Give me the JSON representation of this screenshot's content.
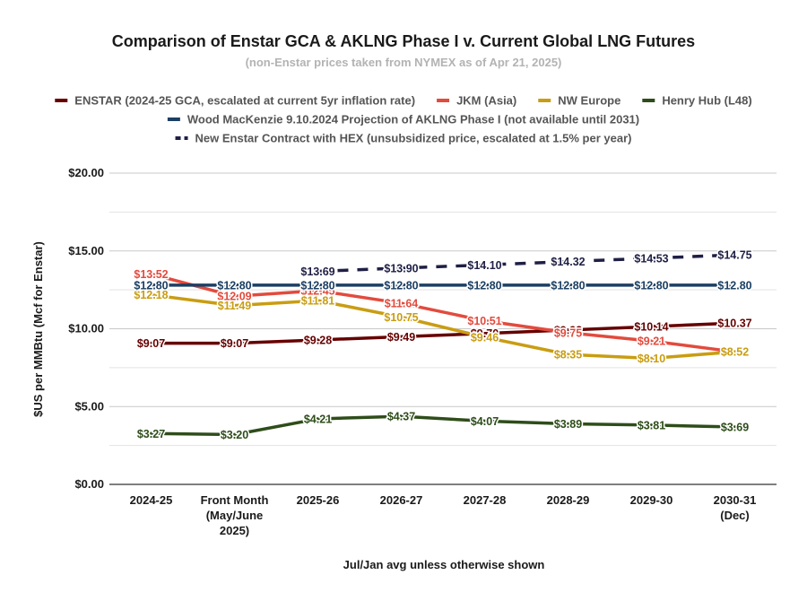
{
  "chart_data": {
    "type": "line",
    "title": "Comparison of Enstar GCA & AKLNG Phase I v. Current Global LNG Futures",
    "subtitle": "(non-Enstar prices taken from NYMEX as of Apr 21, 2025)",
    "xlabel": "Jul/Jan avg unless otherwise shown",
    "ylabel": "$US per MMBtu (Mcf for Enstar)",
    "ylim": [
      0,
      20
    ],
    "yticks": [
      "$0.00",
      "$5.00",
      "$10.00",
      "$15.00",
      "$20.00"
    ],
    "ytick_values": [
      0,
      5,
      10,
      15,
      20
    ],
    "categories": [
      [
        "2024-25"
      ],
      [
        "Front Month",
        "(May/June",
        "2025)"
      ],
      [
        "2025-26"
      ],
      [
        "2026-27"
      ],
      [
        "2027-28"
      ],
      [
        "2028-29"
      ],
      [
        "2029-30"
      ],
      [
        "2030-31",
        "(Dec)"
      ]
    ],
    "grid": true,
    "legend_position": "top",
    "series": [
      {
        "name": "ENSTAR (2024-25 GCA, escalated at current 5yr inflation rate)",
        "color": "#660000",
        "dash": false,
        "values": [
          9.07,
          9.07,
          9.28,
          9.49,
          9.7,
          9.92,
          10.14,
          10.37
        ],
        "labels": [
          "$9.07",
          "$9.07",
          "$9.28",
          "$9.49",
          "$9.70",
          "$9.92",
          "$10.14",
          "$10.37"
        ]
      },
      {
        "name": "JKM (Asia)",
        "color": "#e24b3d",
        "dash": false,
        "values": [
          13.52,
          12.09,
          12.45,
          11.64,
          10.51,
          9.75,
          9.21,
          8.52
        ],
        "labels": [
          "$13.52",
          "$12.09",
          "$12.45",
          "$11.64",
          "$10.51",
          "$9.75",
          "$9.21",
          "$8.52"
        ]
      },
      {
        "name": "NW Europe",
        "color": "#c99d12",
        "dash": false,
        "values": [
          12.18,
          11.49,
          11.81,
          10.75,
          9.46,
          8.35,
          8.1,
          8.52
        ],
        "labels": [
          "$12.18",
          "$11.49",
          "$11.81",
          "$10.75",
          "$9.46",
          "$8.35",
          "$8.10",
          "$8.52"
        ]
      },
      {
        "name": "Henry Hub (L48)",
        "color": "#2e4d1a",
        "dash": false,
        "values": [
          3.27,
          3.2,
          4.21,
          4.37,
          4.07,
          3.89,
          3.81,
          3.69
        ],
        "labels": [
          "$3.27",
          "$3.20",
          "$4.21",
          "$4.37",
          "$4.07",
          "$3.89",
          "$3.81",
          "$3.69"
        ]
      },
      {
        "name": "Wood MacKenzie 9.10.2024 Projection of AKLNG Phase I (not available until 2031)",
        "color": "#1c3f63",
        "dash": false,
        "values": [
          12.8,
          12.8,
          12.8,
          12.8,
          12.8,
          12.8,
          12.8,
          12.8
        ],
        "labels": [
          "$12.80",
          "$12.80",
          "$12.80",
          "$12.80",
          "$12.80",
          "$12.80",
          "$12.80",
          "$12.80"
        ]
      },
      {
        "name": "New Enstar Contract with HEX (unsubsidized price, escalated at 1.5% per year)",
        "color": "#1f1f45",
        "dash": true,
        "start_index": 2,
        "values": [
          null,
          null,
          13.69,
          13.9,
          14.1,
          14.32,
          14.53,
          14.75
        ],
        "labels": [
          "",
          "",
          "$13.69",
          "$13.90",
          "$14.10",
          "$14.32",
          "$14.53",
          "$14.75"
        ]
      }
    ]
  }
}
